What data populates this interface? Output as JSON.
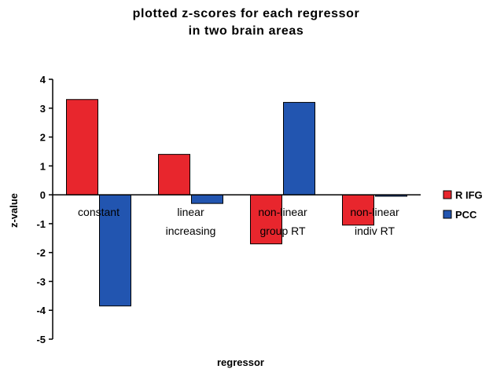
{
  "chart_data": {
    "type": "bar",
    "title_lines": [
      "plotted z-scores for each regressor",
      "in two brain areas"
    ],
    "xlabel": "regressor",
    "ylabel": "z-value",
    "ylim": [
      -5,
      4
    ],
    "yticks": [
      4,
      3,
      2,
      1,
      0,
      -1,
      -2,
      -3,
      -4,
      -5
    ],
    "categories": [
      [
        "constant"
      ],
      [
        "linear",
        "increasing"
      ],
      [
        "non-linear",
        "group RT"
      ],
      [
        "non-linear",
        "indiv RT"
      ]
    ],
    "series": [
      {
        "name": "R IFG",
        "color": "#e8262d",
        "values": [
          3.3,
          1.4,
          -1.7,
          -1.05
        ]
      },
      {
        "name": "PCC",
        "color": "#2255b0",
        "values": [
          -3.85,
          -0.3,
          3.2,
          -0.05
        ]
      }
    ],
    "grid": false,
    "legend": "right"
  }
}
